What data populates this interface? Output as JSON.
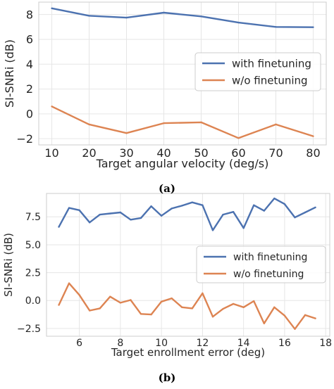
{
  "captions": {
    "a": "(a)",
    "b": "(b)"
  },
  "colors": {
    "with": "#4c72b0",
    "without": "#dd8452",
    "grid": "#e6e6e6",
    "axis": "#cccccc"
  },
  "chart_data": [
    {
      "type": "line",
      "title": "",
      "xlabel": "Target angular velocity (deg/s)",
      "ylabel": "SI-SNRi (dB)",
      "xlim": [
        6.5,
        83.5
      ],
      "ylim": [
        -2.5,
        9.0
      ],
      "xticks": [
        10,
        20,
        30,
        40,
        50,
        60,
        70,
        80
      ],
      "yticks": [
        -2,
        0,
        2,
        4,
        6,
        8
      ],
      "ytick_labels": [
        "−2",
        "0",
        "2",
        "4",
        "6",
        "8"
      ],
      "grid": true,
      "legend": "center-right",
      "x": [
        10,
        20,
        30,
        40,
        50,
        60,
        70,
        80
      ],
      "series": [
        {
          "name": "with finetuning",
          "color": "#4c72b0",
          "values": [
            8.5,
            7.9,
            7.75,
            8.15,
            7.85,
            7.35,
            7.0,
            6.98
          ]
        },
        {
          "name": "w/o finetuning",
          "color": "#dd8452",
          "values": [
            0.6,
            -0.85,
            -1.55,
            -0.75,
            -0.68,
            -1.95,
            -0.85,
            -1.8
          ]
        }
      ]
    },
    {
      "type": "line",
      "title": "",
      "xlabel": "Target enrollment error (deg)",
      "ylabel": "SI-SNRi (dB)",
      "xlim": [
        4.4,
        18.2
      ],
      "ylim": [
        -3.2,
        9.6
      ],
      "xticks": [
        6,
        8,
        10,
        12,
        14,
        16,
        18
      ],
      "yticks": [
        -2.5,
        0.0,
        2.5,
        5.0,
        7.5
      ],
      "ytick_labels": [
        "−2.5",
        "0.0",
        "2.5",
        "5.0",
        "7.5"
      ],
      "grid": true,
      "legend": "center-right",
      "x": [
        5.0,
        5.5,
        6.0,
        6.5,
        7.0,
        7.5,
        8.0,
        8.5,
        9.0,
        9.5,
        10.0,
        10.5,
        11.0,
        11.5,
        12.0,
        12.5,
        13.0,
        13.5,
        14.0,
        14.5,
        15.0,
        15.5,
        16.0,
        16.5,
        17.0,
        17.5
      ],
      "series": [
        {
          "name": "with finetuning",
          "color": "#4c72b0",
          "values": [
            6.6,
            8.3,
            8.1,
            7.0,
            7.7,
            7.8,
            7.9,
            7.25,
            7.4,
            8.45,
            7.6,
            8.25,
            8.5,
            8.8,
            8.55,
            6.3,
            7.7,
            7.95,
            6.5,
            8.55,
            8.05,
            9.15,
            8.65,
            7.45,
            7.9,
            8.35
          ]
        },
        {
          "name": "w/o finetuning",
          "color": "#dd8452",
          "values": [
            -0.4,
            1.55,
            0.5,
            -0.9,
            -0.7,
            0.35,
            -0.2,
            0.05,
            -1.2,
            -1.25,
            -0.1,
            0.2,
            -0.6,
            -0.7,
            0.65,
            -1.45,
            -0.75,
            -0.3,
            -0.6,
            -0.05,
            -2.05,
            -0.6,
            -1.35,
            -2.55,
            -1.3,
            -1.6
          ]
        }
      ]
    }
  ]
}
